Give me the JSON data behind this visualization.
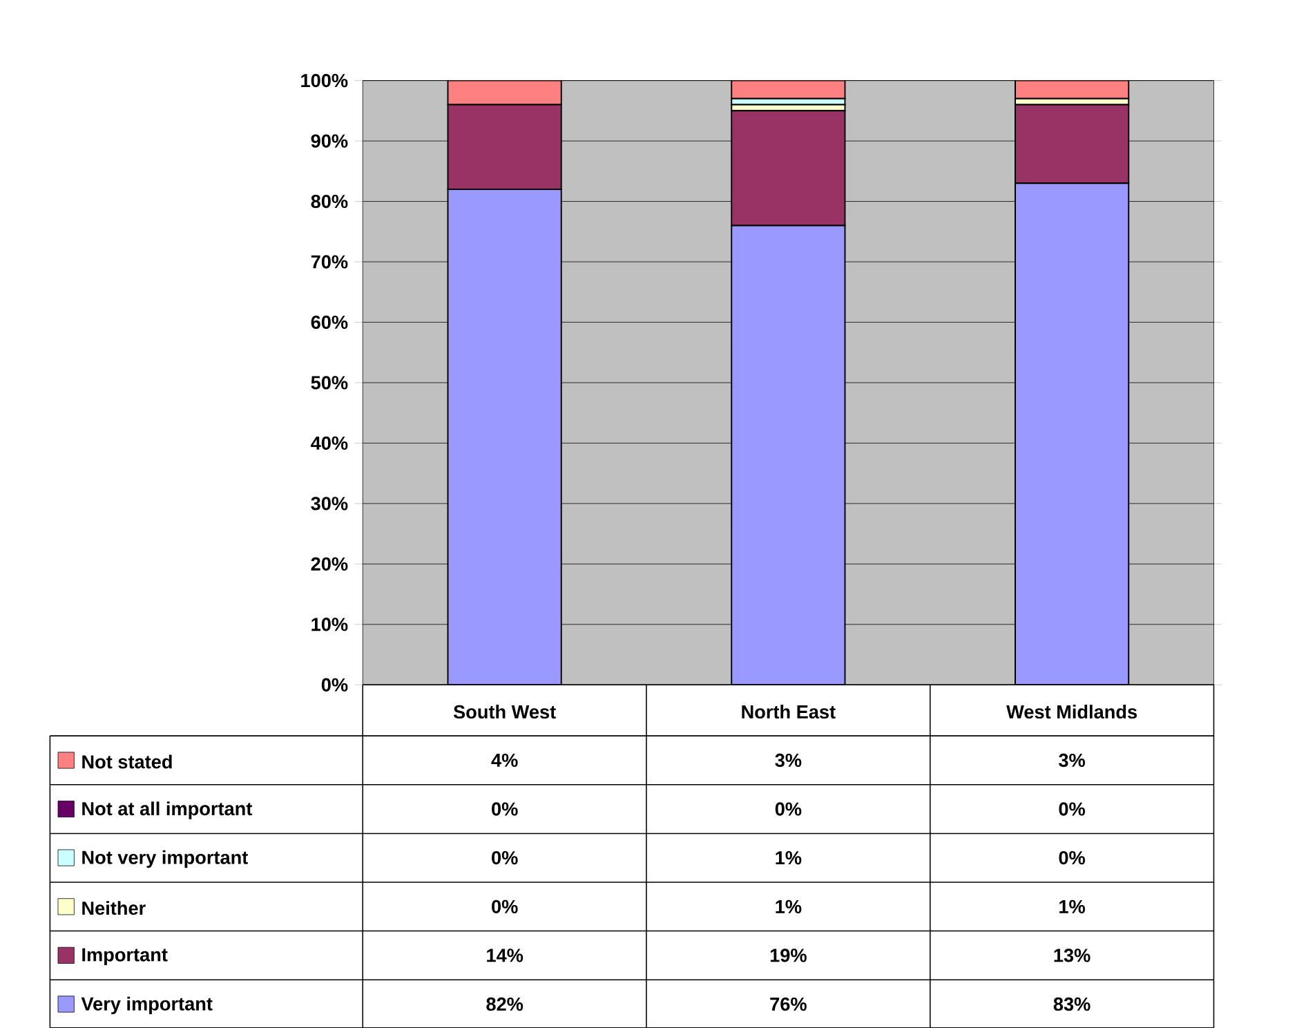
{
  "chart_data": {
    "type": "bar",
    "stacked": true,
    "categories": [
      "South West",
      "North East",
      "West Midlands"
    ],
    "series": [
      {
        "name": "Very important",
        "color": "#9999ff",
        "values": [
          82,
          76,
          83
        ],
        "value_labels": [
          "82%",
          "76%",
          "83%"
        ]
      },
      {
        "name": "Important",
        "color": "#993366",
        "values": [
          14,
          19,
          13
        ],
        "value_labels": [
          "14%",
          "19%",
          "13%"
        ]
      },
      {
        "name": "Neither",
        "color": "#ffffcc",
        "values": [
          0,
          1,
          1
        ],
        "value_labels": [
          "0%",
          "1%",
          "1%"
        ]
      },
      {
        "name": "Not very important",
        "color": "#ccffff",
        "values": [
          0,
          1,
          0
        ],
        "value_labels": [
          "0%",
          "1%",
          "0%"
        ]
      },
      {
        "name": "Not at all important",
        "color": "#660066",
        "values": [
          0,
          0,
          0
        ],
        "value_labels": [
          "0%",
          "0%",
          "0%"
        ]
      },
      {
        "name": "Not stated",
        "color": "#ff8080",
        "values": [
          4,
          3,
          3
        ],
        "value_labels": [
          "4%",
          "3%",
          "3%"
        ]
      }
    ],
    "ylim": [
      0,
      100
    ],
    "yticks": [
      {
        "value": 0,
        "label": "0%"
      },
      {
        "value": 10,
        "label": "10%"
      },
      {
        "value": 20,
        "label": "20%"
      },
      {
        "value": 30,
        "label": "30%"
      },
      {
        "value": 40,
        "label": "40%"
      },
      {
        "value": 50,
        "label": "50%"
      },
      {
        "value": 60,
        "label": "60%"
      },
      {
        "value": 70,
        "label": "70%"
      },
      {
        "value": 80,
        "label": "80%"
      },
      {
        "value": 90,
        "label": "90%"
      },
      {
        "value": 100,
        "label": "100%"
      }
    ],
    "grid": "y",
    "legend": "bottom"
  }
}
